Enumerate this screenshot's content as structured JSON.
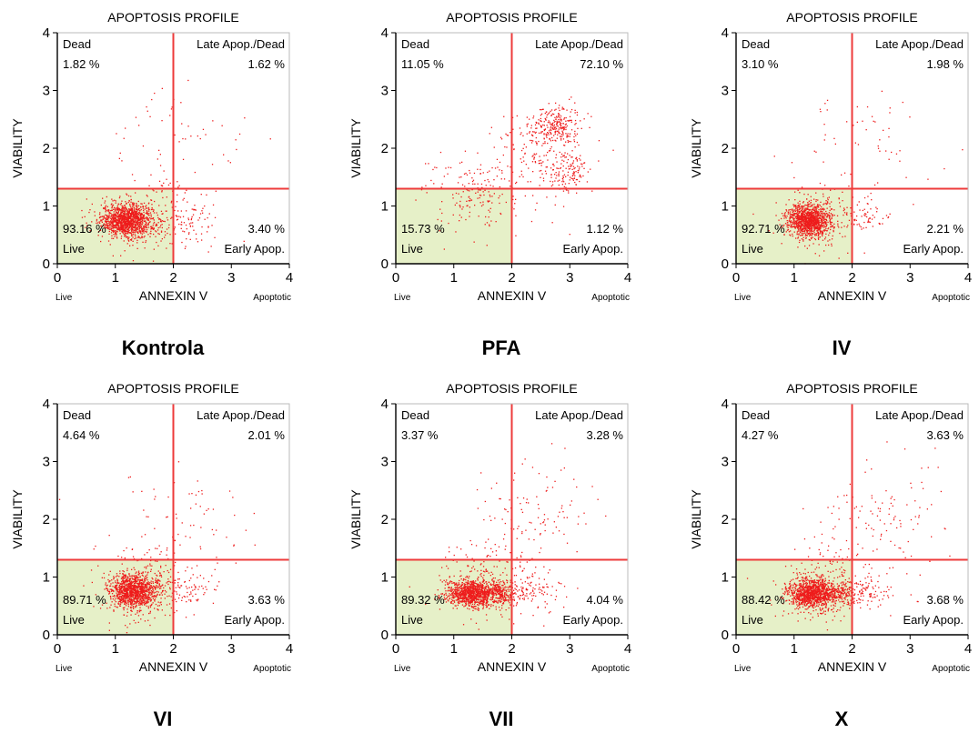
{
  "chart_data": [
    {
      "type": "scatter",
      "caption": "Kontrola",
      "title": "APOPTOSIS PROFILE",
      "xlabel": "ANNEXIN V",
      "ylabel": "VIABILITY",
      "x_left_label": "Live",
      "x_right_label": "Apoptotic",
      "xlim": [
        0,
        4
      ],
      "ylim": [
        0,
        4
      ],
      "xticks": [
        "0",
        "1",
        "2",
        "3",
        "4"
      ],
      "yticks": [
        "0",
        "1",
        "2",
        "3",
        "4"
      ],
      "x_gate": 2.0,
      "y_gate": 1.3,
      "quadrants": {
        "dead": {
          "name": "Dead",
          "pct": "1.82 %"
        },
        "late": {
          "name": "Late Apop./Dead",
          "pct": "1.62 %"
        },
        "live": {
          "name": "Live",
          "pct": "93.16 %"
        },
        "early": {
          "name": "Early Apop.",
          "pct": "3.40 %"
        }
      },
      "clusters": [
        {
          "cx": 1.2,
          "cy": 0.75,
          "sx": 0.22,
          "sy": 0.14,
          "n": 1200
        },
        {
          "cx": 1.6,
          "cy": 0.8,
          "sx": 0.45,
          "sy": 0.3,
          "n": 220
        },
        {
          "cx": 2.3,
          "cy": 0.75,
          "sx": 0.25,
          "sy": 0.15,
          "n": 60
        },
        {
          "cx": 2.2,
          "cy": 2.1,
          "sx": 0.6,
          "sy": 0.5,
          "n": 55
        }
      ]
    },
    {
      "type": "scatter",
      "caption": "PFA",
      "title": "APOPTOSIS PROFILE",
      "xlabel": "ANNEXIN V",
      "ylabel": "VIABILITY",
      "x_left_label": "Live",
      "x_right_label": "Apoptotic",
      "xlim": [
        0,
        4
      ],
      "ylim": [
        0,
        4
      ],
      "xticks": [
        "0",
        "1",
        "2",
        "3",
        "4"
      ],
      "yticks": [
        "0",
        "1",
        "2",
        "3",
        "4"
      ],
      "x_gate": 2.0,
      "y_gate": 1.3,
      "quadrants": {
        "dead": {
          "name": "Dead",
          "pct": "11.05 %"
        },
        "late": {
          "name": "Late Apop./Dead",
          "pct": "72.10 %"
        },
        "live": {
          "name": "Live",
          "pct": "15.73 %"
        },
        "early": {
          "name": "Early Apop.",
          "pct": "1.12 %"
        }
      },
      "clusters": [
        {
          "cx": 2.75,
          "cy": 2.4,
          "sx": 0.22,
          "sy": 0.18,
          "n": 260
        },
        {
          "cx": 2.95,
          "cy": 1.6,
          "sx": 0.22,
          "sy": 0.18,
          "n": 150
        },
        {
          "cx": 2.3,
          "cy": 2.0,
          "sx": 0.3,
          "sy": 0.3,
          "n": 90
        },
        {
          "cx": 1.3,
          "cy": 1.2,
          "sx": 0.4,
          "sy": 0.3,
          "n": 160
        },
        {
          "cx": 2.0,
          "cy": 1.5,
          "sx": 0.6,
          "sy": 0.5,
          "n": 50
        }
      ]
    },
    {
      "type": "scatter",
      "caption": "IV",
      "title": "APOPTOSIS PROFILE",
      "xlabel": "ANNEXIN V",
      "ylabel": "VIABILITY",
      "x_left_label": "Live",
      "x_right_label": "Apoptotic",
      "xlim": [
        0,
        4
      ],
      "ylim": [
        0,
        4
      ],
      "xticks": [
        "0",
        "1",
        "2",
        "3",
        "4"
      ],
      "yticks": [
        "0",
        "1",
        "2",
        "3",
        "4"
      ],
      "x_gate": 2.0,
      "y_gate": 1.3,
      "quadrants": {
        "dead": {
          "name": "Dead",
          "pct": "3.10 %"
        },
        "late": {
          "name": "Late Apop./Dead",
          "pct": "1.98 %"
        },
        "live": {
          "name": "Live",
          "pct": "92.71 %"
        },
        "early": {
          "name": "Early Apop.",
          "pct": "2.21 %"
        }
      },
      "clusters": [
        {
          "cx": 1.25,
          "cy": 0.75,
          "sx": 0.18,
          "sy": 0.14,
          "n": 1100
        },
        {
          "cx": 1.5,
          "cy": 0.8,
          "sx": 0.4,
          "sy": 0.3,
          "n": 200
        },
        {
          "cx": 2.3,
          "cy": 0.8,
          "sx": 0.25,
          "sy": 0.15,
          "n": 40
        },
        {
          "cx": 2.3,
          "cy": 2.0,
          "sx": 0.6,
          "sy": 0.5,
          "n": 60
        }
      ]
    },
    {
      "type": "scatter",
      "caption": "VI",
      "title": "APOPTOSIS PROFILE",
      "xlabel": "ANNEXIN V",
      "ylabel": "VIABILITY",
      "x_left_label": "Live",
      "x_right_label": "Apoptotic",
      "xlim": [
        0,
        4
      ],
      "ylim": [
        0,
        4
      ],
      "xticks": [
        "0",
        "1",
        "2",
        "3",
        "4"
      ],
      "yticks": [
        "0",
        "1",
        "2",
        "3",
        "4"
      ],
      "x_gate": 2.0,
      "y_gate": 1.3,
      "quadrants": {
        "dead": {
          "name": "Dead",
          "pct": "4.64 %"
        },
        "late": {
          "name": "Late Apop./Dead",
          "pct": "2.01 %"
        },
        "live": {
          "name": "Live",
          "pct": "89.71 %"
        },
        "early": {
          "name": "Early Apop.",
          "pct": "3.63 %"
        }
      },
      "clusters": [
        {
          "cx": 1.3,
          "cy": 0.75,
          "sx": 0.2,
          "sy": 0.15,
          "n": 1100
        },
        {
          "cx": 1.6,
          "cy": 0.85,
          "sx": 0.45,
          "sy": 0.35,
          "n": 240
        },
        {
          "cx": 2.3,
          "cy": 0.75,
          "sx": 0.25,
          "sy": 0.15,
          "n": 60
        },
        {
          "cx": 2.2,
          "cy": 2.0,
          "sx": 0.6,
          "sy": 0.5,
          "n": 70
        }
      ]
    },
    {
      "type": "scatter",
      "caption": "VII",
      "title": "APOPTOSIS PROFILE",
      "xlabel": "ANNEXIN V",
      "ylabel": "VIABILITY",
      "x_left_label": "Live",
      "x_right_label": "Apoptotic",
      "xlim": [
        0,
        4
      ],
      "ylim": [
        0,
        4
      ],
      "xticks": [
        "0",
        "1",
        "2",
        "3",
        "4"
      ],
      "yticks": [
        "0",
        "1",
        "2",
        "3",
        "4"
      ],
      "x_gate": 2.0,
      "y_gate": 1.3,
      "quadrants": {
        "dead": {
          "name": "Dead",
          "pct": "3.37 %"
        },
        "late": {
          "name": "Late Apop./Dead",
          "pct": "3.28 %"
        },
        "live": {
          "name": "Live",
          "pct": "89.32 %"
        },
        "early": {
          "name": "Early Apop.",
          "pct": "4.04 %"
        }
      },
      "clusters": [
        {
          "cx": 1.3,
          "cy": 0.72,
          "sx": 0.22,
          "sy": 0.12,
          "n": 1000
        },
        {
          "cx": 1.8,
          "cy": 0.72,
          "sx": 0.2,
          "sy": 0.1,
          "n": 250
        },
        {
          "cx": 1.6,
          "cy": 0.9,
          "sx": 0.45,
          "sy": 0.35,
          "n": 180
        },
        {
          "cx": 2.3,
          "cy": 0.75,
          "sx": 0.3,
          "sy": 0.15,
          "n": 80
        },
        {
          "cx": 2.5,
          "cy": 2.1,
          "sx": 0.55,
          "sy": 0.5,
          "n": 110
        }
      ]
    },
    {
      "type": "scatter",
      "caption": "X",
      "title": "APOPTOSIS PROFILE",
      "xlabel": "ANNEXIN V",
      "ylabel": "VIABILITY",
      "x_left_label": "Live",
      "x_right_label": "Apoptotic",
      "xlim": [
        0,
        4
      ],
      "ylim": [
        0,
        4
      ],
      "xticks": [
        "0",
        "1",
        "2",
        "3",
        "4"
      ],
      "yticks": [
        "0",
        "1",
        "2",
        "3",
        "4"
      ],
      "x_gate": 2.0,
      "y_gate": 1.3,
      "quadrants": {
        "dead": {
          "name": "Dead",
          "pct": "4.27 %"
        },
        "late": {
          "name": "Late Apop./Dead",
          "pct": "3.63 %"
        },
        "live": {
          "name": "Live",
          "pct": "88.42 %"
        },
        "early": {
          "name": "Early Apop.",
          "pct": "3.68 %"
        }
      },
      "clusters": [
        {
          "cx": 1.3,
          "cy": 0.72,
          "sx": 0.2,
          "sy": 0.13,
          "n": 1050
        },
        {
          "cx": 1.8,
          "cy": 0.72,
          "sx": 0.2,
          "sy": 0.1,
          "n": 200
        },
        {
          "cx": 1.6,
          "cy": 0.9,
          "sx": 0.45,
          "sy": 0.35,
          "n": 180
        },
        {
          "cx": 2.3,
          "cy": 0.75,
          "sx": 0.3,
          "sy": 0.15,
          "n": 70
        },
        {
          "cx": 2.6,
          "cy": 2.1,
          "sx": 0.55,
          "sy": 0.5,
          "n": 110
        }
      ]
    }
  ],
  "colors": {
    "points": "#ee1c1c",
    "gate": "#ee3b3b",
    "live_fill": "#e6f0c8",
    "axis": "#000000",
    "small_label": "#777777"
  }
}
